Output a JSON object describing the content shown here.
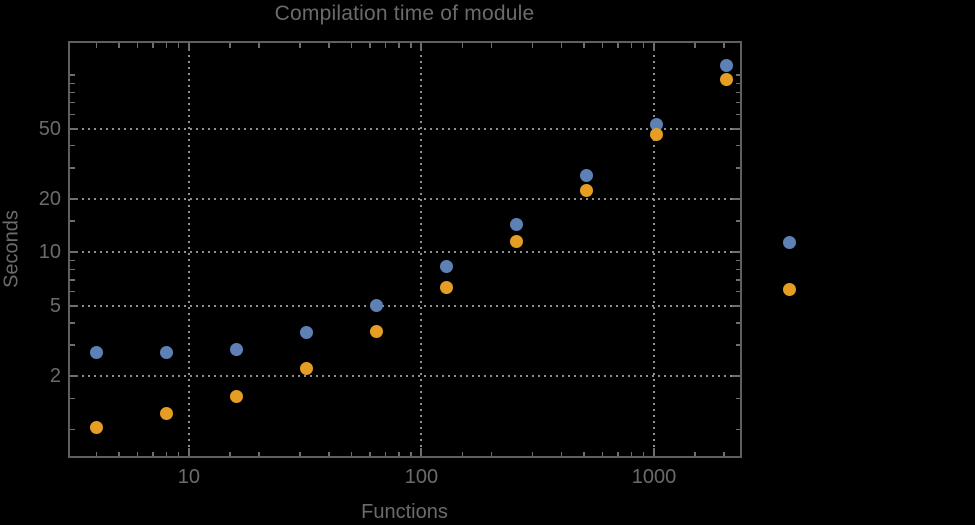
{
  "chart_data": {
    "type": "scatter",
    "title": "Compilation time of module",
    "xlabel": "Functions",
    "ylabel": "Seconds",
    "x_scale": "log",
    "y_scale": "log",
    "xlim": [
      3.08,
      2344
    ],
    "ylim": [
      0.71,
      152
    ],
    "grid": "dotted gridlines at labeled major ticks only",
    "legend_position": "outside right of plot, markers only (no visible label text)",
    "x": [
      4,
      8,
      16,
      32,
      64,
      128,
      256,
      512,
      1024,
      2048
    ],
    "series": [
      {
        "name": "blue",
        "color": "#5E81B5",
        "values": [
          2.73,
          2.73,
          2.85,
          3.55,
          5.0,
          8.3,
          14.3,
          27,
          53,
          114
        ]
      },
      {
        "name": "orange",
        "color": "#E59D24",
        "values": [
          1.03,
          1.23,
          1.53,
          2.2,
          3.6,
          6.3,
          11.6,
          22.5,
          46,
          95
        ]
      }
    ],
    "x_major_ticks": [
      {
        "value": 10,
        "label": "10"
      },
      {
        "value": 100,
        "label": "100"
      },
      {
        "value": 1000,
        "label": "1000"
      }
    ],
    "y_major_ticks": [
      {
        "value": 2,
        "label": "2"
      },
      {
        "value": 5,
        "label": "5"
      },
      {
        "value": 10,
        "label": "10"
      },
      {
        "value": 20,
        "label": "20"
      },
      {
        "value": 50,
        "label": "50"
      }
    ],
    "x_minor_ticks": [
      4,
      5,
      6,
      7,
      8,
      9,
      15,
      20,
      30,
      40,
      50,
      60,
      70,
      80,
      90,
      150,
      200,
      300,
      400,
      500,
      600,
      700,
      800,
      900,
      1500,
      2000
    ],
    "y_minor_ticks": [
      1,
      1.5,
      3,
      4,
      6,
      7,
      8,
      9,
      15,
      30,
      40,
      60,
      70,
      80,
      90,
      100
    ],
    "x_gridlines": [
      10,
      100,
      1000
    ],
    "y_gridlines": [
      2,
      5,
      10,
      20,
      50
    ]
  },
  "legend": {
    "markers": [
      {
        "name": "blue",
        "color": "#5E81B5"
      },
      {
        "name": "orange",
        "color": "#E59D24"
      }
    ]
  },
  "colors": {
    "background": "#000000",
    "frame": "#5f5f5f",
    "gridline": "#8f8f8f",
    "tick": "#6e6e6e",
    "text": "#6b6b6b",
    "series_blue": "#5E81B5",
    "series_orange": "#E59D24"
  }
}
